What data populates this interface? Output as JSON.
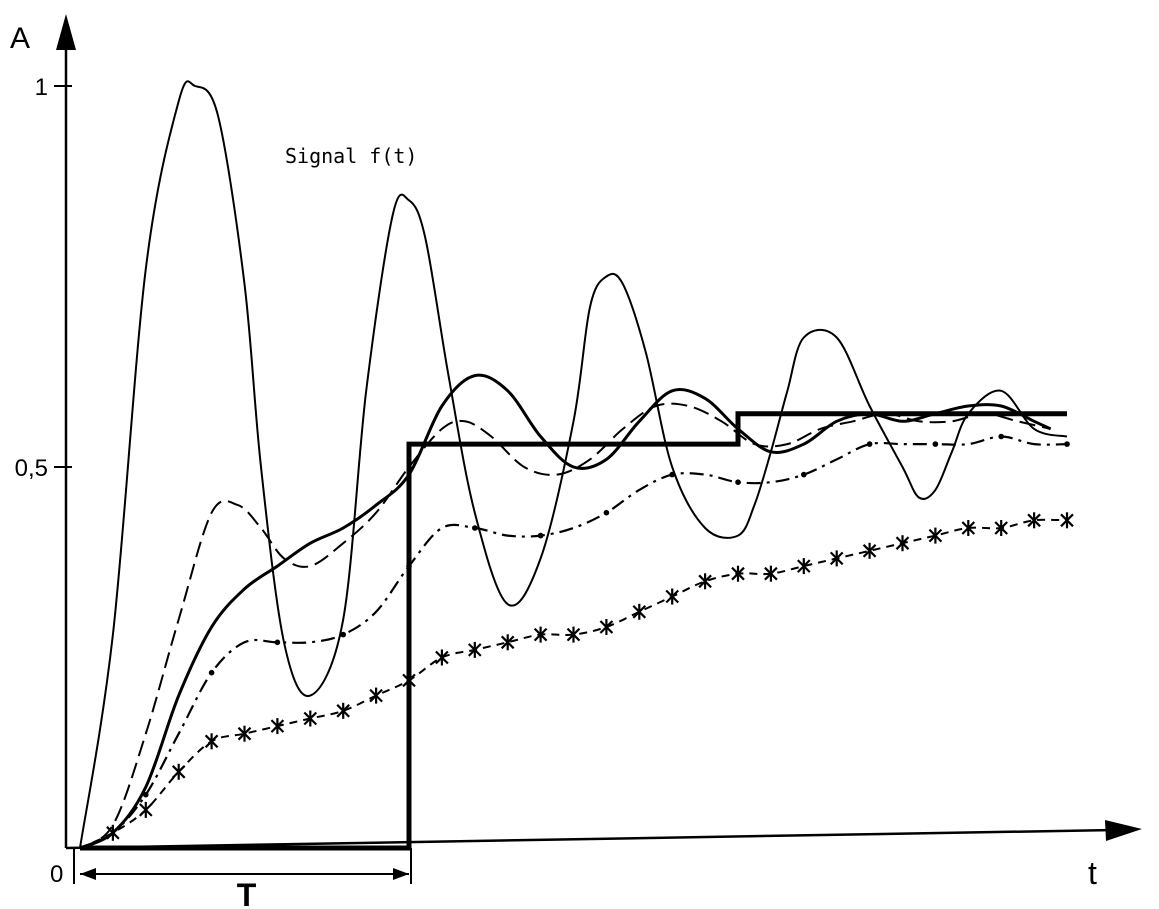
{
  "chart_data": {
    "type": "line",
    "ylabel": "A",
    "xlabel": "t",
    "origin_label": "0",
    "period_label": "T",
    "annotation": "Signal f(t)",
    "yticks": [
      {
        "value": 0.5,
        "label": "0,5"
      },
      {
        "value": 1,
        "label": "1"
      }
    ],
    "ylim": [
      0,
      1.08
    ],
    "xlim": [
      0,
      3.2
    ],
    "grid": false,
    "legend": "none",
    "input_signal": {
      "x": [
        0,
        1.0,
        1.0,
        2.0,
        2.0,
        3.0
      ],
      "y": [
        0,
        0,
        0.53,
        0.53,
        0.57,
        0.57
      ]
    },
    "series": [
      {
        "style": "solid-thin",
        "x": [
          0,
          0.1,
          0.2,
          0.3,
          0.35,
          0.42,
          0.5,
          0.55,
          0.62,
          0.7,
          0.8,
          0.87,
          0.95,
          1.0,
          1.05,
          1.12,
          1.2,
          1.3,
          1.4,
          1.5,
          1.55,
          1.6,
          1.65,
          1.72,
          1.8,
          1.9,
          2.0,
          2.05,
          2.1,
          2.15,
          2.2,
          2.3,
          2.4,
          2.5,
          2.55,
          2.6,
          2.65,
          2.7,
          2.8,
          2.9,
          3.0
        ],
        "y": [
          0,
          0.28,
          0.76,
          0.98,
          1.0,
          0.96,
          0.74,
          0.5,
          0.27,
          0.2,
          0.3,
          0.6,
          0.83,
          0.85,
          0.8,
          0.62,
          0.44,
          0.32,
          0.38,
          0.56,
          0.71,
          0.75,
          0.74,
          0.65,
          0.5,
          0.42,
          0.41,
          0.45,
          0.52,
          0.6,
          0.67,
          0.67,
          0.58,
          0.5,
          0.46,
          0.47,
          0.52,
          0.57,
          0.6,
          0.55,
          0.54
        ]
      },
      {
        "style": "dashed",
        "x": [
          0,
          0.1,
          0.2,
          0.3,
          0.4,
          0.48,
          0.55,
          0.62,
          0.7,
          0.8,
          0.9,
          1.0,
          1.1,
          1.17,
          1.25,
          1.35,
          1.45,
          1.55,
          1.65,
          1.75,
          1.85,
          1.95,
          2.05,
          2.15,
          2.25,
          2.35,
          2.45,
          2.55,
          2.65,
          2.75,
          2.85,
          2.95
        ],
        "y": [
          0,
          0.03,
          0.15,
          0.3,
          0.44,
          0.45,
          0.42,
          0.38,
          0.37,
          0.4,
          0.44,
          0.5,
          0.55,
          0.56,
          0.54,
          0.5,
          0.49,
          0.51,
          0.55,
          0.58,
          0.58,
          0.56,
          0.53,
          0.53,
          0.55,
          0.56,
          0.57,
          0.56,
          0.56,
          0.57,
          0.56,
          0.55
        ]
      },
      {
        "style": "solid-bold",
        "x": [
          0,
          0.1,
          0.2,
          0.3,
          0.4,
          0.5,
          0.6,
          0.7,
          0.8,
          0.9,
          1.0,
          1.1,
          1.2,
          1.3,
          1.4,
          1.5,
          1.6,
          1.7,
          1.8,
          1.9,
          2.0,
          2.1,
          2.2,
          2.3,
          2.4,
          2.5,
          2.6,
          2.7,
          2.8,
          2.9,
          2.95
        ],
        "y": [
          0,
          0.02,
          0.08,
          0.2,
          0.29,
          0.34,
          0.37,
          0.4,
          0.42,
          0.45,
          0.49,
          0.58,
          0.62,
          0.6,
          0.54,
          0.5,
          0.51,
          0.56,
          0.6,
          0.59,
          0.55,
          0.52,
          0.53,
          0.56,
          0.57,
          0.56,
          0.57,
          0.58,
          0.58,
          0.56,
          0.55
        ]
      },
      {
        "style": "dash-dot",
        "x": [
          0,
          0.1,
          0.2,
          0.3,
          0.4,
          0.5,
          0.6,
          0.7,
          0.8,
          0.9,
          1.0,
          1.1,
          1.2,
          1.3,
          1.4,
          1.5,
          1.6,
          1.7,
          1.8,
          1.9,
          2.0,
          2.1,
          2.2,
          2.3,
          2.4,
          2.5,
          2.6,
          2.7,
          2.8,
          2.9,
          3.0
        ],
        "y": [
          0,
          0.02,
          0.07,
          0.15,
          0.23,
          0.27,
          0.27,
          0.27,
          0.28,
          0.31,
          0.37,
          0.42,
          0.42,
          0.41,
          0.41,
          0.42,
          0.44,
          0.47,
          0.49,
          0.49,
          0.48,
          0.48,
          0.49,
          0.51,
          0.53,
          0.53,
          0.53,
          0.53,
          0.54,
          0.53,
          0.53
        ]
      },
      {
        "style": "star-marked",
        "x": [
          0,
          0.1,
          0.2,
          0.3,
          0.4,
          0.5,
          0.6,
          0.7,
          0.8,
          0.9,
          1.0,
          1.1,
          1.2,
          1.3,
          1.4,
          1.5,
          1.6,
          1.7,
          1.8,
          1.9,
          2.0,
          2.1,
          2.2,
          2.3,
          2.4,
          2.5,
          2.6,
          2.7,
          2.8,
          2.9,
          3.0
        ],
        "y": [
          0,
          0.02,
          0.05,
          0.1,
          0.14,
          0.15,
          0.16,
          0.17,
          0.18,
          0.2,
          0.22,
          0.25,
          0.26,
          0.27,
          0.28,
          0.28,
          0.29,
          0.31,
          0.33,
          0.35,
          0.36,
          0.36,
          0.37,
          0.38,
          0.39,
          0.4,
          0.41,
          0.42,
          0.42,
          0.43,
          0.43
        ]
      }
    ]
  }
}
